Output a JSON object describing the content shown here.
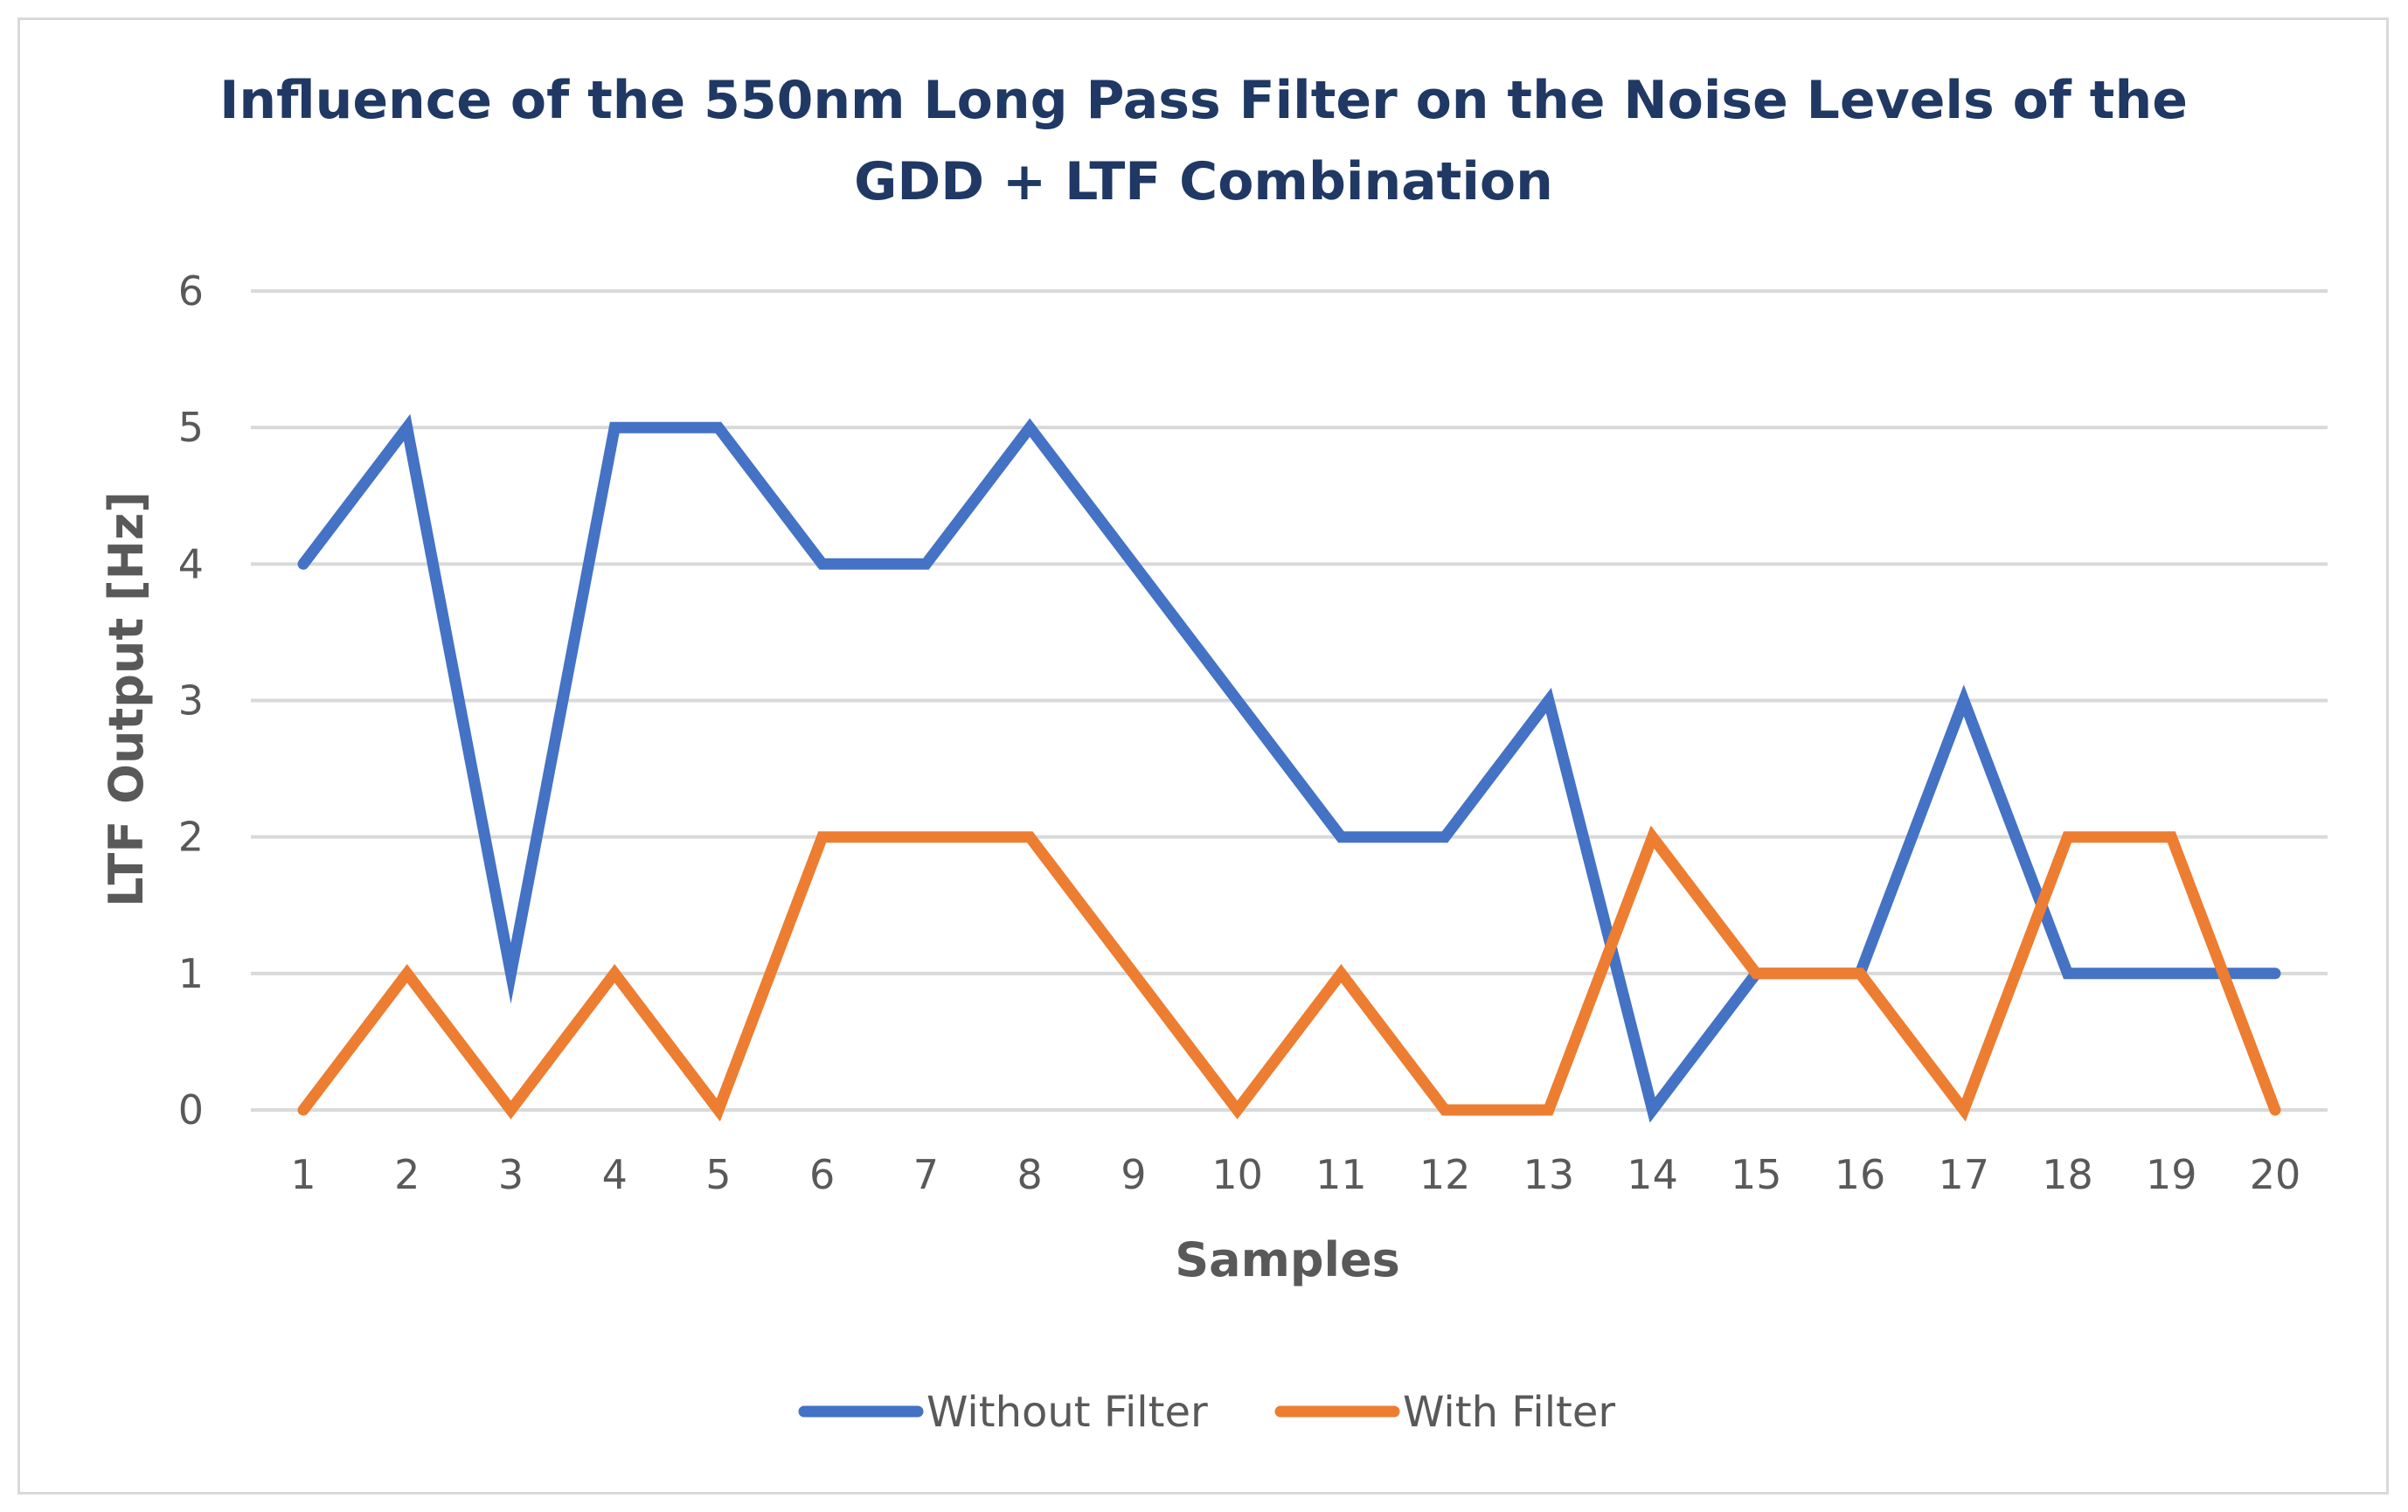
{
  "chart_data": {
    "type": "line",
    "title_lines": [
      "Influence of the 550nm Long Pass Filter on the Noise Levels of the",
      "GDD + LTF Combination"
    ],
    "xlabel": "Samples",
    "ylabel": "LTF Output [Hz]",
    "categories": [
      "1",
      "2",
      "3",
      "4",
      "5",
      "6",
      "7",
      "8",
      "9",
      "10",
      "11",
      "12",
      "13",
      "14",
      "15",
      "16",
      "17",
      "18",
      "19",
      "20"
    ],
    "ylim": [
      0,
      6
    ],
    "yticks": [
      "0",
      "1",
      "2",
      "3",
      "4",
      "5",
      "6"
    ],
    "grid": true,
    "legend_position": "bottom",
    "series": [
      {
        "name": "Without Filter",
        "color": "#4472c4",
        "values": [
          4,
          5,
          1,
          5,
          5,
          4,
          4,
          5,
          4,
          3,
          2,
          2,
          3,
          0,
          1,
          1,
          3,
          1,
          1,
          1
        ]
      },
      {
        "name": "With Filter",
        "color": "#ed7d31",
        "values": [
          0,
          1,
          0,
          1,
          0,
          2,
          2,
          2,
          1,
          0,
          1,
          0,
          0,
          2,
          1,
          1,
          0,
          2,
          2,
          0
        ]
      }
    ],
    "gridline_color": "#d9d9d9"
  }
}
